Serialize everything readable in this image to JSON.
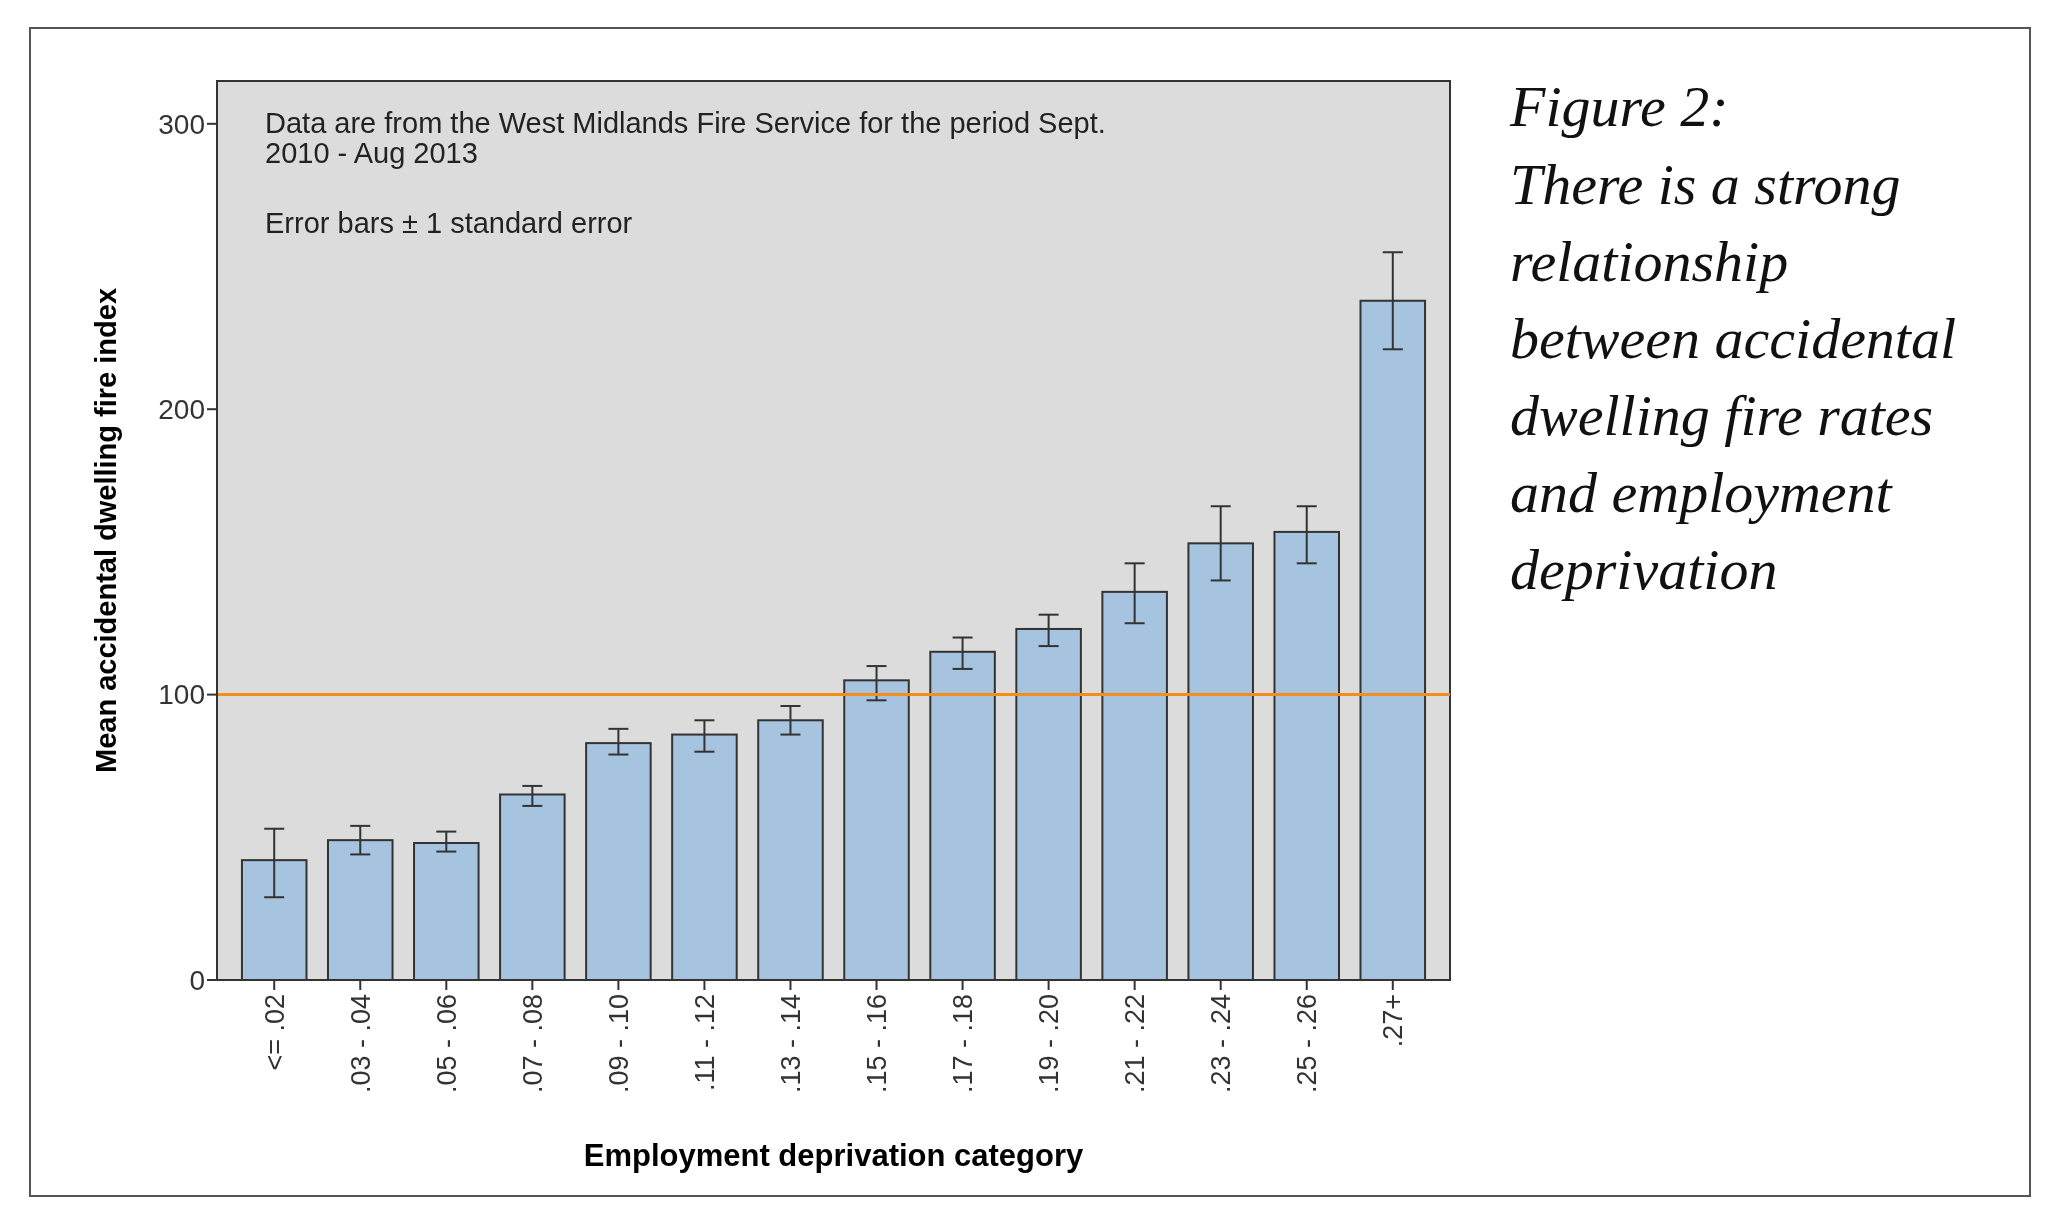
{
  "chart_data": {
    "type": "bar",
    "title": "Figure 2:",
    "subtitle": "There is a strong relationship between accidental dwelling fire rates and employment deprivation",
    "xlabel": "Employment deprivation category",
    "ylabel": "Mean accidental dwelling fire index",
    "annotations": [
      "Data are from the West Midlands Fire Service for the period Sept. 2010 - Aug 2013",
      "Error bars ± 1 standard error"
    ],
    "categories": [
      "<= .02",
      ".03 - .04",
      ".05 - .06",
      ".07 - .08",
      ".09 - .10",
      ".11 - .12",
      ".13 - .14",
      ".15 - .16",
      ".17 - .18",
      ".19 - .20",
      ".21 - .22",
      ".23 - .24",
      ".25 - .26",
      ".27+"
    ],
    "values": [
      42,
      49,
      48,
      65,
      83,
      86,
      91,
      105,
      115,
      123,
      136,
      153,
      157,
      238
    ],
    "errors": [
      [
        29,
        53
      ],
      [
        44,
        54
      ],
      [
        45,
        52
      ],
      [
        61,
        68
      ],
      [
        79,
        88
      ],
      [
        80,
        91
      ],
      [
        86,
        96
      ],
      [
        98,
        110
      ],
      [
        109,
        120
      ],
      [
        117,
        128
      ],
      [
        125,
        146
      ],
      [
        140,
        166
      ],
      [
        146,
        166
      ],
      [
        221,
        255
      ]
    ],
    "color": "#a6c4e0",
    "ylim": [
      0,
      315
    ],
    "yticks": [
      0,
      100,
      200,
      300
    ],
    "ref_lines": [
      {
        "axis": "y",
        "value": 100,
        "color": "#f28e1e"
      }
    ],
    "grid": false
  }
}
